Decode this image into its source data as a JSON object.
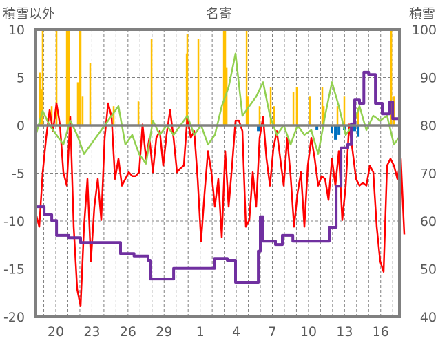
{
  "chart_data": {
    "type": "line",
    "title": "名寄",
    "ylabel": "積雪以外",
    "y2label": "積雪",
    "ylim": [
      -20,
      10
    ],
    "y2lim": [
      40,
      100
    ],
    "yticks": [
      10,
      5,
      0,
      -5,
      -10,
      -15,
      -20
    ],
    "y2ticks": [
      100,
      90,
      80,
      70,
      60,
      50,
      40
    ],
    "xlim": [
      -1.66,
      28.56
    ],
    "xtick_positions": [
      0,
      3,
      6,
      9,
      12,
      15,
      18,
      21,
      24,
      27
    ],
    "xtick_labels": [
      "20",
      "23",
      "26",
      "29",
      "1",
      "4",
      "7",
      "10",
      "13",
      "16"
    ],
    "grid": true,
    "colors": {
      "temperature": "#ff0000",
      "green": "#92d050",
      "snow": "#7030a0",
      "precip": "#ffc000",
      "negative": "#0070c0",
      "axis": "#808080"
    },
    "series": [
      {
        "name": "temperature",
        "axis": "left",
        "x_start": -1.66,
        "x_step": 0.2862,
        "values": [
          -9.2,
          -10.6,
          -4.9,
          -1.3,
          1.6,
          -0.6,
          2.3,
          0.1,
          -4.9,
          -6.3,
          0.9,
          -10.6,
          -17.1,
          -18.9,
          -10.6,
          -5.6,
          -14.2,
          -8.5,
          -5.6,
          -9.9,
          -1.3,
          2.3,
          0.9,
          -5.6,
          -3.5,
          -6.3,
          -5.6,
          -4.9,
          -5.3,
          -5.3,
          -4.9,
          0.1,
          -3.5,
          -1.3,
          -4.9,
          -1.3,
          -0.6,
          -4.2,
          -0.9,
          1.6,
          -1.3,
          -4.9,
          -4.5,
          -4.2,
          0.9,
          -1.3,
          -0.6,
          -5.6,
          -12.1,
          -7.1,
          -2.7,
          -4.9,
          -8.5,
          -5.6,
          -11.7,
          -2.7,
          -8.5,
          -4.2,
          0.5,
          0.5,
          -0.6,
          -10.6,
          -9.9,
          -4.9,
          -8.5,
          -1.3,
          0.9,
          -3.5,
          -6.3,
          -2.4,
          -0.6,
          -3.5,
          -6.3,
          -1.3,
          -5.3,
          -10.6,
          -7.1,
          -4.9,
          -10.6,
          -4.2,
          -1.3,
          -3.5,
          -6.3,
          -5.3,
          -5.6,
          -7.8,
          -3.5,
          -6.3,
          -2.7,
          -9.9,
          -6.3,
          0.1,
          -2.7,
          -5.6,
          -6.3,
          -6.0,
          -6.3,
          -4.2,
          -4.9,
          -10.6,
          -14.2,
          -15.3,
          -4.2,
          -3.5,
          -4.2,
          -5.6,
          -3.5,
          -11.4
        ]
      },
      {
        "name": "green",
        "axis": "left",
        "x_start": -1.66,
        "x_step": 0.5724,
        "values": [
          -1,
          1.5,
          0,
          -1,
          -2,
          0.5,
          -1,
          -3,
          -2,
          -1,
          0,
          1,
          2,
          -2,
          -1,
          -3,
          -4,
          0.5,
          -1,
          0,
          -1,
          0,
          1,
          -1,
          0,
          -2,
          -1,
          2,
          4,
          7.5,
          1,
          2,
          3,
          4.5,
          1,
          -1,
          0,
          -2,
          0,
          -1,
          -0.5,
          -3,
          1,
          4.5,
          2,
          -1,
          0,
          2,
          -0.5,
          1,
          0.5,
          1,
          -2,
          -1
        ]
      },
      {
        "name": "snow_depth",
        "axis": "right",
        "points": [
          [
            -1.66,
            63
          ],
          [
            -1.09,
            63
          ],
          [
            -0.97,
            61.3
          ],
          [
            -0.34,
            60.1
          ],
          [
            0.06,
            57
          ],
          [
            1.09,
            56.5
          ],
          [
            2.06,
            55.5
          ],
          [
            5.09,
            55.5
          ],
          [
            5.38,
            53.2
          ],
          [
            6.5,
            52.7
          ],
          [
            7.67,
            51.8
          ],
          [
            7.84,
            47.9
          ],
          [
            9.67,
            47.9
          ],
          [
            9.79,
            50.1
          ],
          [
            13.1,
            50.1
          ],
          [
            13.2,
            52.2
          ],
          [
            14.25,
            51.8
          ],
          [
            14.94,
            47.2
          ],
          [
            16.26,
            47.2
          ],
          [
            16.83,
            53.7
          ],
          [
            17.0,
            60.9
          ],
          [
            17.23,
            55.8
          ],
          [
            18.26,
            55.1
          ],
          [
            18.83,
            57
          ],
          [
            19.7,
            55.8
          ],
          [
            22.27,
            55.8
          ],
          [
            22.72,
            58.7
          ],
          [
            23.3,
            67.3
          ],
          [
            23.7,
            75.3
          ],
          [
            24.27,
            76
          ],
          [
            24.56,
            80.3
          ],
          [
            24.84,
            85.3
          ],
          [
            25.24,
            84.6
          ],
          [
            25.6,
            91.1
          ],
          [
            26.0,
            90.6
          ],
          [
            26.56,
            84.6
          ],
          [
            27.13,
            82.4
          ],
          [
            27.76,
            84.9
          ],
          [
            28.0,
            81.4
          ],
          [
            28.56,
            78.8
          ]
        ]
      },
      {
        "name": "precip",
        "axis": "left",
        "type": "bar",
        "points": [
          [
            -1.32,
            5.5
          ],
          [
            -1.2,
            3.8
          ],
          [
            -1.09,
            10
          ],
          [
            -0.34,
            2
          ],
          [
            0.06,
            10
          ],
          [
            0.92,
            10
          ],
          [
            0.97,
            10
          ],
          [
            1.09,
            10
          ],
          [
            1.83,
            4.5
          ],
          [
            2.0,
            10
          ],
          [
            2.06,
            10
          ],
          [
            2.23,
            3
          ],
          [
            2.86,
            6.5
          ],
          [
            4.81,
            2
          ],
          [
            6.87,
            2.5
          ],
          [
            7.96,
            9
          ],
          [
            10.88,
            7.5
          ],
          [
            10.93,
            9.5
          ],
          [
            11.85,
            9
          ],
          [
            13.97,
            10
          ],
          [
            14.08,
            10
          ],
          [
            14.2,
            6
          ],
          [
            15.86,
            10
          ],
          [
            15.97,
            3
          ],
          [
            16.94,
            2
          ],
          [
            17.86,
            4
          ],
          [
            18.15,
            2
          ],
          [
            19.75,
            3.5
          ],
          [
            20.03,
            4
          ],
          [
            21.12,
            3
          ],
          [
            22.15,
            4
          ],
          [
            22.27,
            2
          ],
          [
            23.41,
            2
          ],
          [
            23.98,
            3
          ],
          [
            25.13,
            1.8
          ],
          [
            27.88,
            10
          ],
          [
            28.1,
            3
          ]
        ]
      },
      {
        "name": "negative",
        "axis": "left",
        "type": "bar",
        "points": [
          [
            16.83,
            -0.6
          ],
          [
            17.0,
            -0.3
          ],
          [
            21.7,
            -0.5
          ],
          [
            22.95,
            -0.8
          ],
          [
            23.24,
            -1.5
          ],
          [
            23.53,
            -1
          ],
          [
            23.98,
            -0.5
          ],
          [
            24.84,
            -0.6
          ],
          [
            25.13,
            -1.2
          ]
        ]
      }
    ]
  }
}
